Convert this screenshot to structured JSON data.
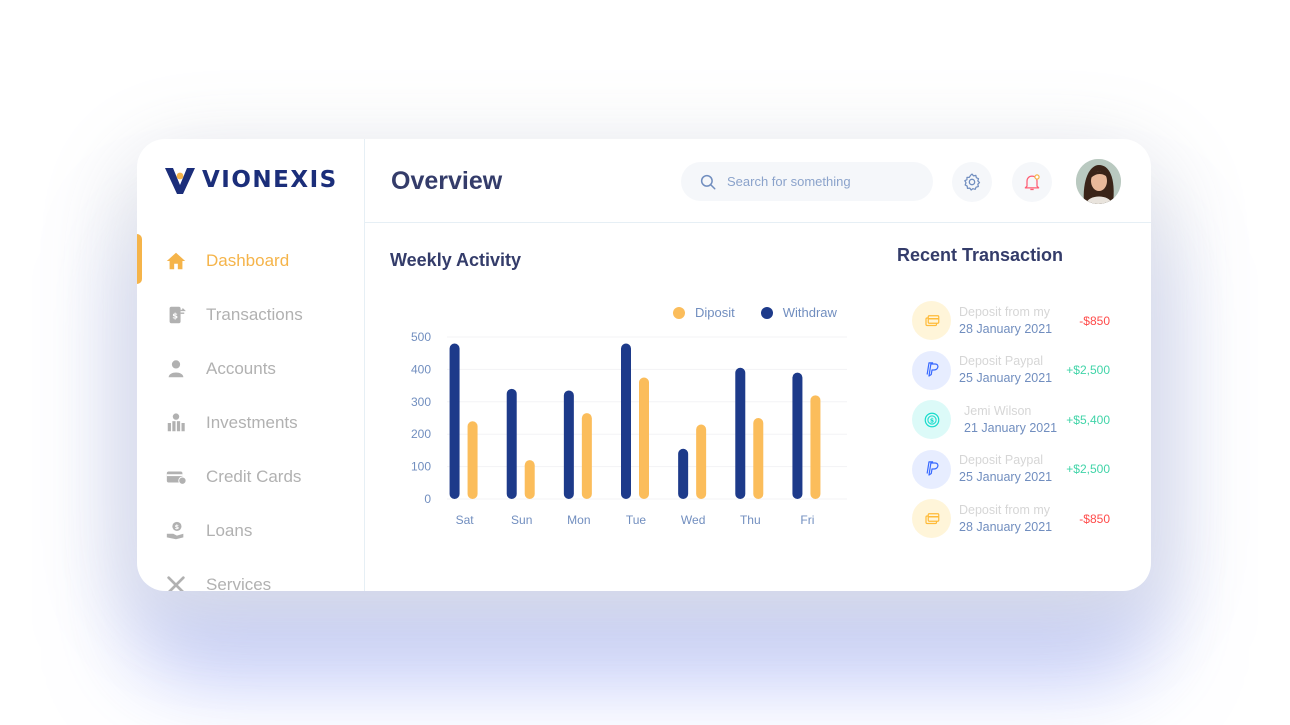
{
  "brand": {
    "name": "VIONEXIS"
  },
  "colors": {
    "accent": "#f5b44a",
    "primary": "#1b2e7a",
    "withdraw": "#1d3a8a",
    "deposit": "#fbbd5b",
    "negative": "#ff4b4a",
    "positive": "#41d4a8"
  },
  "sidebar": {
    "items": [
      {
        "label": "Dashboard",
        "icon": "home-icon",
        "active": true
      },
      {
        "label": "Transactions",
        "icon": "transfer-icon",
        "active": false
      },
      {
        "label": "Accounts",
        "icon": "user-icon",
        "active": false
      },
      {
        "label": "Investments",
        "icon": "investment-icon",
        "active": false
      },
      {
        "label": "Credit Cards",
        "icon": "credit-card-icon",
        "active": false
      },
      {
        "label": "Loans",
        "icon": "loan-icon",
        "active": false
      },
      {
        "label": "Services",
        "icon": "services-icon",
        "active": false
      }
    ]
  },
  "header": {
    "title": "Overview",
    "search_placeholder": "Search for something",
    "settings_icon": "gear-icon",
    "notifications_icon": "bell-icon"
  },
  "weekly": {
    "title": "Weekly Activity"
  },
  "chart_data": {
    "type": "bar",
    "categories": [
      "Sat",
      "Sun",
      "Mon",
      "Tue",
      "Wed",
      "Thu",
      "Fri"
    ],
    "series": [
      {
        "name": "Withdraw",
        "values": [
          480,
          340,
          335,
          480,
          155,
          405,
          390
        ]
      },
      {
        "name": "Diposit",
        "values": [
          240,
          120,
          265,
          375,
          230,
          250,
          320
        ]
      }
    ],
    "title": "Weekly Activity",
    "ylim": [
      0,
      500
    ],
    "yticks": [
      0,
      100,
      200,
      300,
      400,
      500
    ],
    "grid": true,
    "legend": "top-right"
  },
  "transactions": {
    "title": "Recent Transaction",
    "items": [
      {
        "title": "Deposit from my",
        "date": "28 January 2021",
        "amount": "-$850",
        "type": "negative",
        "icon": "card-icon"
      },
      {
        "title": "Deposit Paypal",
        "date": "25 January 2021",
        "amount": "+$2,500",
        "type": "positive",
        "icon": "paypal-icon"
      },
      {
        "title": "Jemi Wilson",
        "date": "21 January 2021",
        "amount": "+$5,400",
        "type": "positive",
        "icon": "dollar-coin-icon"
      },
      {
        "title": "Deposit Paypal",
        "date": "25 January 2021",
        "amount": "+$2,500",
        "type": "positive",
        "icon": "paypal-icon"
      },
      {
        "title": "Deposit from my",
        "date": "28 January 2021",
        "amount": "-$850",
        "type": "negative",
        "icon": "card-icon"
      }
    ]
  }
}
